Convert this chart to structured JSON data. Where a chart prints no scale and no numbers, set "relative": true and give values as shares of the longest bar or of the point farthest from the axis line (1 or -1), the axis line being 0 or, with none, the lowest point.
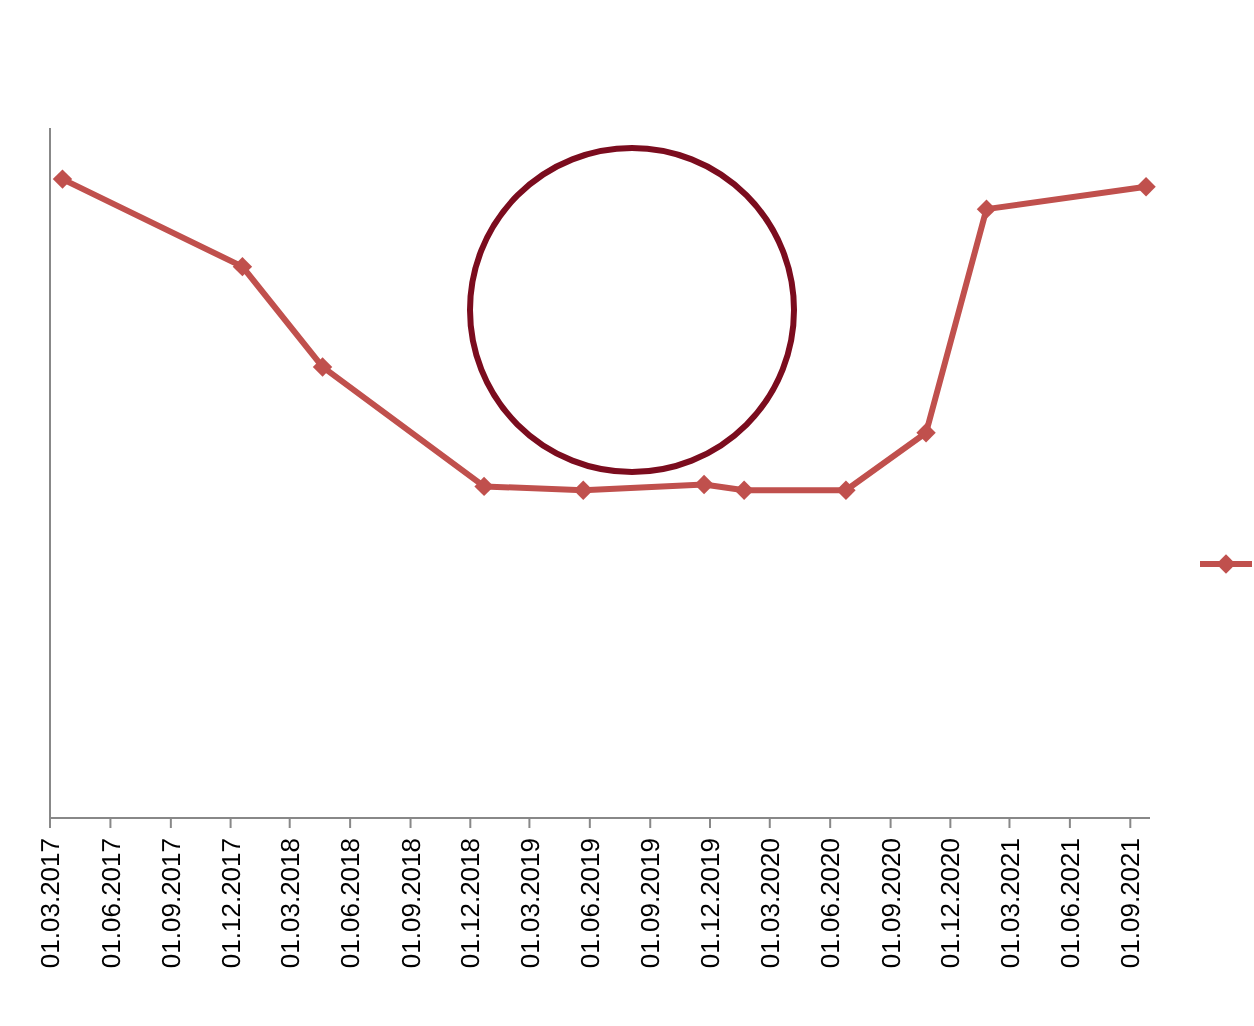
{
  "chart_data": {
    "type": "line",
    "relative": true,
    "x": [
      "2017-03-20",
      "2017-12-19",
      "2018-04-20",
      "2018-12-22",
      "2019-05-22",
      "2019-11-22",
      "2020-01-22",
      "2020-06-25",
      "2020-10-25",
      "2021-01-25",
      "2021-09-25"
    ],
    "series": [
      {
        "color": "#c0504d",
        "values": [
          1,
          0.863,
          0.706,
          0.519,
          0.513,
          0.522,
          0.513,
          0.513,
          0.603,
          0.953,
          0.988
        ]
      }
    ],
    "xlim": [
      "2017-03-01",
      "2021-10-01"
    ],
    "xticks": [
      {
        "value": "2017-03-01",
        "label": "01.03.2017"
      },
      {
        "value": "2017-06-01",
        "label": "01.06.2017"
      },
      {
        "value": "2017-09-01",
        "label": "01.09.2017"
      },
      {
        "value": "2017-12-01",
        "label": "01.12.2017"
      },
      {
        "value": "2018-03-01",
        "label": "01.03.2018"
      },
      {
        "value": "2018-06-01",
        "label": "01.06.2018"
      },
      {
        "value": "2018-09-01",
        "label": "01.09.2018"
      },
      {
        "value": "2018-12-01",
        "label": "01.12.2018"
      },
      {
        "value": "2019-03-01",
        "label": "01.03.2019"
      },
      {
        "value": "2019-06-01",
        "label": "01.06.2019"
      },
      {
        "value": "2019-09-01",
        "label": "01.09.2019"
      },
      {
        "value": "2019-12-01",
        "label": "01.12.2019"
      },
      {
        "value": "2020-03-01",
        "label": "01.03.2020"
      },
      {
        "value": "2020-06-01",
        "label": "01.06.2020"
      },
      {
        "value": "2020-09-01",
        "label": "01.09.2020"
      },
      {
        "value": "2020-12-01",
        "label": "01.12.2020"
      },
      {
        "value": "2021-03-01",
        "label": "01.03.2021"
      },
      {
        "value": "2021-06-01",
        "label": "01.06.2021"
      },
      {
        "value": "2021-09-01",
        "label": "01.09.2021"
      }
    ],
    "marker": "diamond",
    "line_style": "solid"
  }
}
